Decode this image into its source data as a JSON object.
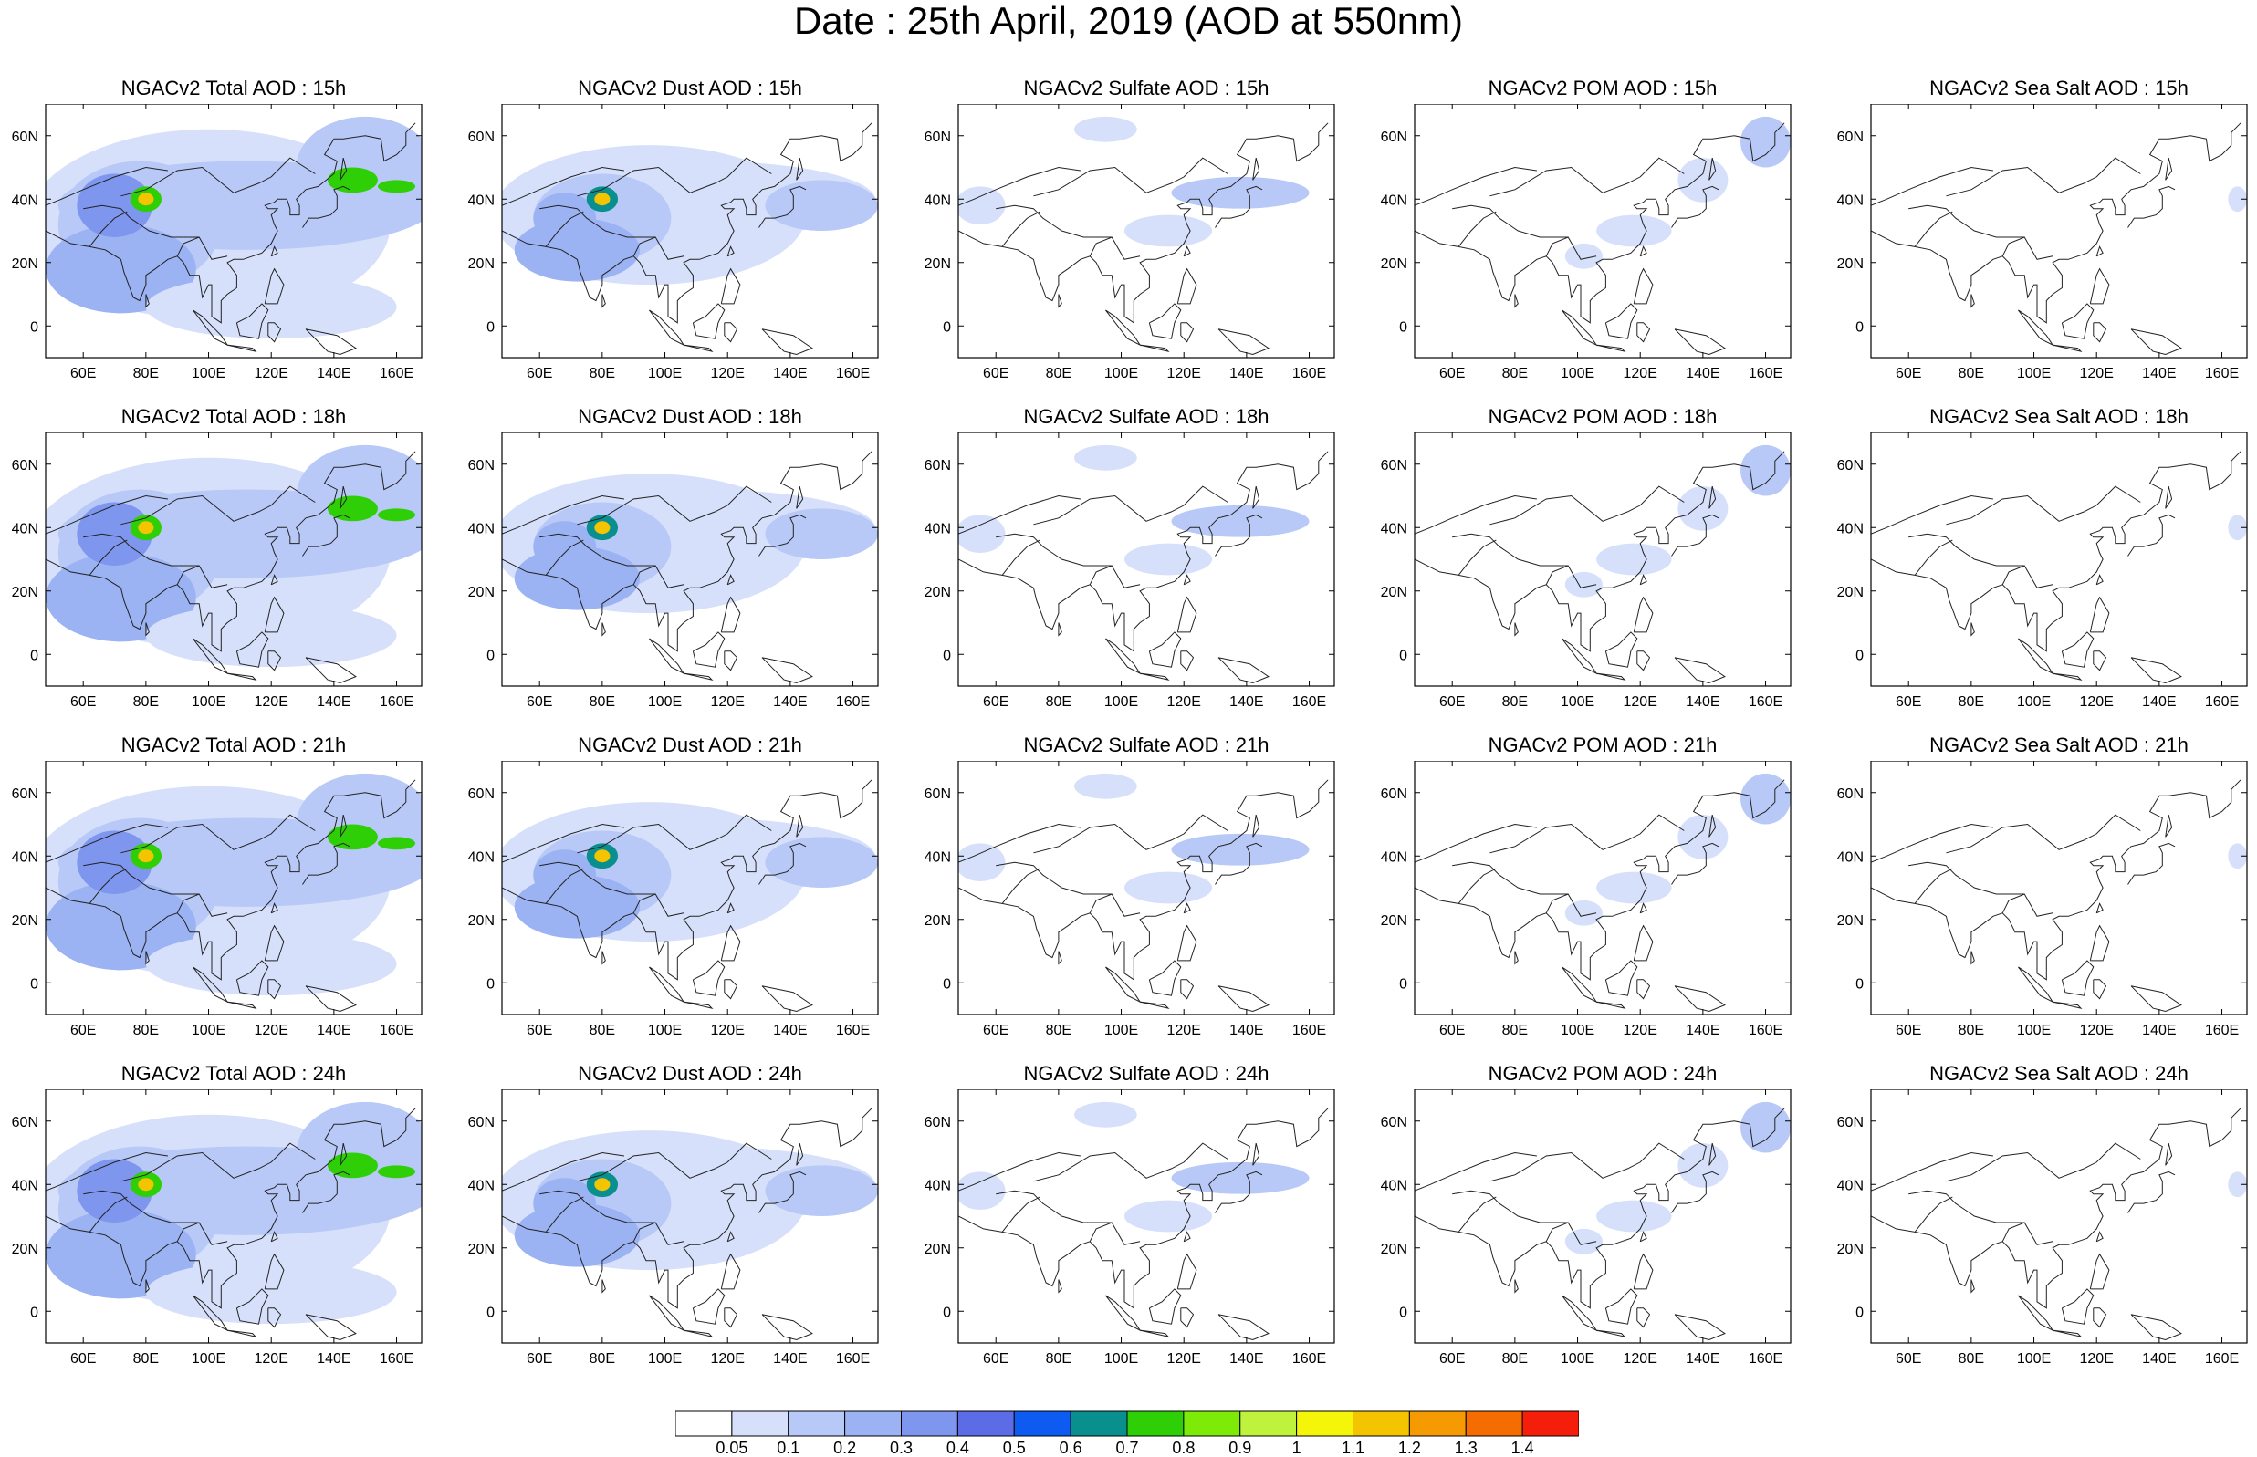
{
  "title": "Date : 25th April, 2019 (AOD at 550nm)",
  "axes": {
    "lon_ticks": [
      "60E",
      "80E",
      "100E",
      "120E",
      "140E",
      "160E"
    ],
    "lat_ticks": [
      "60N",
      "40N",
      "20N",
      "0"
    ],
    "lon_values": [
      60,
      80,
      100,
      120,
      140,
      160
    ],
    "lat_values": [
      60,
      40,
      20,
      0
    ],
    "lon_range": [
      48,
      168
    ],
    "lat_range": [
      -10,
      70
    ]
  },
  "panels": [
    {
      "title": "NGACv2 Total AOD : 15h",
      "kind": "total"
    },
    {
      "title": "NGACv2 Dust AOD : 15h",
      "kind": "dust"
    },
    {
      "title": "NGACv2 Sulfate AOD : 15h",
      "kind": "sulfate"
    },
    {
      "title": "NGACv2 POM AOD : 15h",
      "kind": "pom"
    },
    {
      "title": "NGACv2 Sea Salt AOD : 15h",
      "kind": "seasalt"
    },
    {
      "title": "NGACv2 Total AOD : 18h",
      "kind": "total"
    },
    {
      "title": "NGACv2 Dust AOD : 18h",
      "kind": "dust"
    },
    {
      "title": "NGACv2 Sulfate AOD : 18h",
      "kind": "sulfate"
    },
    {
      "title": "NGACv2 POM AOD : 18h",
      "kind": "pom"
    },
    {
      "title": "NGACv2 Sea Salt AOD : 18h",
      "kind": "seasalt"
    },
    {
      "title": "NGACv2 Total AOD : 21h",
      "kind": "total"
    },
    {
      "title": "NGACv2 Dust AOD : 21h",
      "kind": "dust"
    },
    {
      "title": "NGACv2 Sulfate AOD : 21h",
      "kind": "sulfate"
    },
    {
      "title": "NGACv2 POM AOD : 21h",
      "kind": "pom"
    },
    {
      "title": "NGACv2 Sea Salt AOD : 21h",
      "kind": "seasalt"
    },
    {
      "title": "NGACv2 Total AOD : 24h",
      "kind": "total"
    },
    {
      "title": "NGACv2 Dust AOD : 24h",
      "kind": "dust"
    },
    {
      "title": "NGACv2 Sulfate AOD : 24h",
      "kind": "sulfate"
    },
    {
      "title": "NGACv2 POM AOD : 24h",
      "kind": "pom"
    },
    {
      "title": "NGACv2 Sea Salt  AOD : 24h",
      "kind": "seasalt"
    }
  ],
  "colorbar": {
    "labels": [
      "0.05",
      "0.1",
      "0.2",
      "0.3",
      "0.4",
      "0.5",
      "0.6",
      "0.7",
      "0.8",
      "0.9",
      "1",
      "1.1",
      "1.2",
      "1.3",
      "1.4"
    ],
    "colors": [
      "#ffffff",
      "#d6e0fb",
      "#b8c9f7",
      "#9bb2f3",
      "#7f96ee",
      "#5c6ce6",
      "#0d5bf0",
      "#0a8f8f",
      "#2ecf06",
      "#7dea07",
      "#bff23d",
      "#f5f50a",
      "#f5c400",
      "#f59a00",
      "#f56d00",
      "#f51e0a"
    ]
  }
}
